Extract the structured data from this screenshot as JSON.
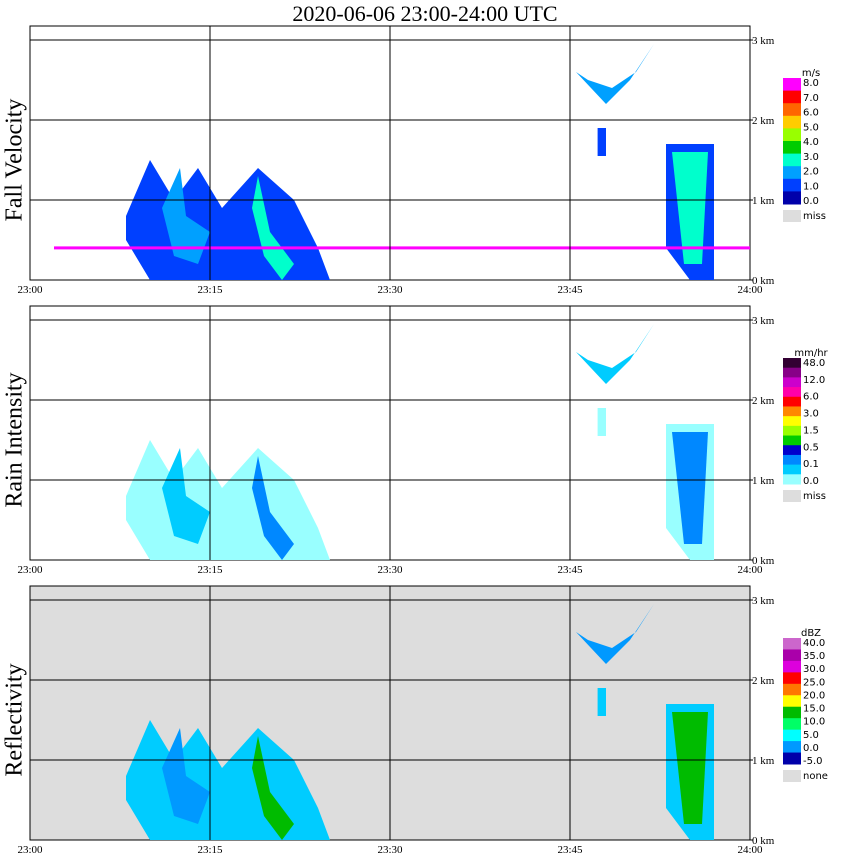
{
  "title": "2020-06-06   23:00-24:00 UTC",
  "chart_data": [
    {
      "type": "heatmap",
      "ylabel": "Fall Velocity",
      "x_ticks": [
        "23:00",
        "23:15",
        "23:30",
        "23:45",
        "24:00"
      ],
      "y_ticks": [
        "0 km",
        "1 km",
        "2 km",
        "3 km"
      ],
      "xlim": [
        "23:00",
        "24:00"
      ],
      "ylim_km": [
        0,
        3.2
      ],
      "grid": true,
      "background": "#ffffff",
      "legend": {
        "unit": "m/s",
        "labels": [
          "8.0",
          "7.0",
          "6.0",
          "5.0",
          "4.0",
          "3.0",
          "2.0",
          "1.0",
          "0.0",
          "miss"
        ],
        "colors": [
          "#ff00ff",
          "#ff0000",
          "#ff6600",
          "#ffcc00",
          "#99ff00",
          "#00cc00",
          "#00ffcc",
          "#00a0ff",
          "#0040ff",
          "#0000aa",
          "#dddddd"
        ]
      }
    },
    {
      "type": "heatmap",
      "ylabel": "Rain Intensity",
      "x_ticks": [
        "23:00",
        "23:15",
        "23:30",
        "23:45",
        "24:00"
      ],
      "y_ticks": [
        "0 km",
        "1 km",
        "2 km",
        "3 km"
      ],
      "xlim": [
        "23:00",
        "24:00"
      ],
      "ylim_km": [
        0,
        3.2
      ],
      "grid": true,
      "background": "#ffffff",
      "legend": {
        "unit": "mm/hr",
        "labels": [
          "48.0",
          "12.0",
          "6.0",
          "3.0",
          "1.5",
          "0.5",
          "0.1",
          "0.0",
          "miss"
        ],
        "colors": [
          "#330033",
          "#880088",
          "#cc00cc",
          "#ff00aa",
          "#ff0000",
          "#ff8800",
          "#ffff00",
          "#99ff00",
          "#00cc00",
          "#0000cc",
          "#0088ff",
          "#00ccff",
          "#99ffff",
          "#dddddd"
        ]
      }
    },
    {
      "type": "heatmap",
      "ylabel": "Reflectivity",
      "x_ticks": [
        "23:00",
        "23:15",
        "23:30",
        "23:45",
        "24:00"
      ],
      "y_ticks": [
        "0 km",
        "1 km",
        "2 km",
        "3 km"
      ],
      "xlim": [
        "23:00",
        "24:00"
      ],
      "ylim_km": [
        0,
        3.2
      ],
      "grid": true,
      "background": "#dddddd",
      "legend": {
        "unit": "dBZ",
        "labels": [
          "40.0",
          "35.0",
          "30.0",
          "25.0",
          "20.0",
          "15.0",
          "10.0",
          "5.0",
          "0.0",
          "-5.0",
          "none"
        ],
        "colors": [
          "#cc66cc",
          "#aa00aa",
          "#dd00dd",
          "#ff0000",
          "#ff7700",
          "#ffff00",
          "#00bb00",
          "#00ff66",
          "#00ffff",
          "#0099ff",
          "#0000aa",
          "#dddddd"
        ]
      }
    }
  ]
}
